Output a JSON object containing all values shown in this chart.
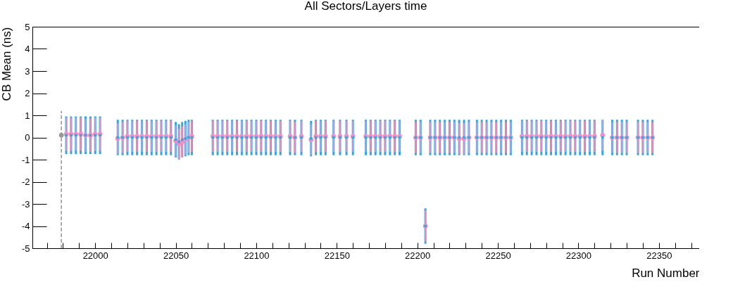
{
  "chart_data": {
    "type": "scatter",
    "title": "All Sectors/Layers time",
    "xlabel": "Run Number",
    "ylabel": "CB Mean (ns)",
    "x": [
      21982,
      21985,
      21988,
      21991,
      21994,
      21997,
      22000,
      22003,
      22014,
      22017,
      22020,
      22023,
      22026,
      22029,
      22032,
      22035,
      22038,
      22041,
      22044,
      22047,
      22050,
      22052,
      22054,
      22056,
      22058,
      22060,
      22073,
      22076,
      22079,
      22082,
      22085,
      22088,
      22091,
      22094,
      22097,
      22100,
      22103,
      22106,
      22109,
      22112,
      22115,
      22121,
      22124,
      22128,
      22134,
      22137,
      22140,
      22143,
      22148,
      22152,
      22156,
      22160,
      22168,
      22171,
      22174,
      22177,
      22180,
      22183,
      22186,
      22189,
      22199,
      22202,
      22205,
      22208,
      22211,
      22214,
      22217,
      22220,
      22223,
      22226,
      22229,
      22232,
      22237,
      22240,
      22243,
      22246,
      22249,
      22252,
      22255,
      22258,
      22265,
      22268,
      22271,
      22274,
      22277,
      22280,
      22283,
      22286,
      22289,
      22292,
      22295,
      22298,
      22301,
      22304,
      22307,
      22310,
      22315,
      22321,
      22324,
      22327,
      22330,
      22337,
      22340,
      22343,
      22346
    ],
    "series": [
      {
        "color": "#3ba3dc",
        "marker": "square",
        "values": [
          0.1,
          0.1,
          0.1,
          0.1,
          0.1,
          0.1,
          0.1,
          0.1,
          0,
          0,
          0,
          0,
          0,
          0,
          0,
          0,
          0,
          0,
          0,
          0,
          -0.1,
          -0.2,
          -0.1,
          -0.05,
          0,
          0,
          0,
          0,
          0,
          0,
          0,
          0,
          0,
          0,
          0,
          0,
          0,
          0,
          0,
          0,
          0,
          0,
          0,
          0,
          -0.05,
          0,
          0,
          0,
          0,
          0,
          0,
          0,
          0,
          0,
          0,
          0,
          0,
          0,
          0,
          0,
          0,
          0,
          -4,
          0,
          0,
          0,
          0,
          0,
          0,
          0,
          0,
          0,
          0,
          0,
          0,
          0,
          0,
          0,
          0,
          0,
          0,
          0,
          0,
          0,
          0,
          0,
          0,
          0,
          0,
          0,
          0,
          0,
          0,
          0,
          0,
          0,
          0,
          0,
          0,
          0,
          0,
          0,
          0,
          0,
          0
        ],
        "errors": [
          0.85,
          0.85,
          0.85,
          0.85,
          0.85,
          0.85,
          0.85,
          0.85,
          0.8,
          0.8,
          0.8,
          0.8,
          0.8,
          0.8,
          0.8,
          0.8,
          0.8,
          0.8,
          0.8,
          0.8,
          0.8,
          0.8,
          0.8,
          0.8,
          0.8,
          0.8,
          0.8,
          0.8,
          0.8,
          0.8,
          0.8,
          0.8,
          0.8,
          0.8,
          0.8,
          0.8,
          0.8,
          0.8,
          0.8,
          0.8,
          0.8,
          0.8,
          0.8,
          0.8,
          0.8,
          0.8,
          0.8,
          0.8,
          0.8,
          0.8,
          0.8,
          0.8,
          0.8,
          0.8,
          0.8,
          0.8,
          0.8,
          0.8,
          0.8,
          0.8,
          0.8,
          0.8,
          0.8,
          0.8,
          0.8,
          0.8,
          0.8,
          0.8,
          0.8,
          0.8,
          0.8,
          0.8,
          0.8,
          0.8,
          0.8,
          0.8,
          0.8,
          0.8,
          0.8,
          0.8,
          0.8,
          0.8,
          0.8,
          0.8,
          0.8,
          0.8,
          0.8,
          0.8,
          0.8,
          0.8,
          0.8,
          0.8,
          0.8,
          0.8,
          0.8,
          0.8,
          0.8,
          0.8,
          0.8,
          0.8,
          0.8,
          0.8,
          0.8,
          0.8,
          0.8
        ]
      },
      {
        "color": "#f48fc6",
        "marker": "circle",
        "values": [
          0.15,
          0.15,
          0.15,
          0.15,
          0.1,
          0.1,
          0.15,
          0.15,
          -0.05,
          0,
          0.05,
          0.05,
          0.05,
          0.05,
          0.05,
          0.05,
          0.05,
          0.05,
          0.05,
          0.05,
          -0.15,
          -0.3,
          -0.2,
          -0.1,
          0,
          0.05,
          0.05,
          0.05,
          0.05,
          0.05,
          0.05,
          0.05,
          0.05,
          0.05,
          0.05,
          0.05,
          0.05,
          0.05,
          0.05,
          0.05,
          0.05,
          0.05,
          0,
          0.05,
          -0.1,
          0.05,
          0.05,
          0.05,
          0.05,
          0.05,
          0.05,
          0.05,
          0.05,
          0.05,
          0.05,
          0.05,
          0.05,
          0.05,
          0.05,
          0.05,
          0,
          0,
          -4,
          0,
          0,
          0,
          0,
          0,
          0,
          -0.05,
          -0.05,
          0,
          0,
          0,
          0,
          0,
          0,
          0,
          0,
          0,
          0.05,
          0.05,
          0.05,
          0.05,
          0.05,
          0.05,
          0.05,
          0.05,
          0.05,
          0.05,
          0.05,
          0.05,
          0.05,
          0.05,
          0.05,
          0.05,
          0.1,
          0,
          0,
          0,
          0,
          0,
          0,
          0,
          0
        ],
        "errors": [
          0.75,
          0.75,
          0.75,
          0.75,
          0.75,
          0.75,
          0.75,
          0.75,
          0.7,
          0.7,
          0.7,
          0.7,
          0.7,
          0.7,
          0.7,
          0.7,
          0.7,
          0.7,
          0.7,
          0.7,
          0.7,
          0.7,
          0.7,
          0.7,
          0.7,
          0.7,
          0.7,
          0.7,
          0.7,
          0.7,
          0.7,
          0.7,
          0.7,
          0.7,
          0.7,
          0.7,
          0.7,
          0.7,
          0.7,
          0.7,
          0.7,
          0.7,
          0.7,
          0.7,
          0.7,
          0.7,
          0.7,
          0.7,
          0.7,
          0.7,
          0.7,
          0.7,
          0.7,
          0.7,
          0.7,
          0.7,
          0.7,
          0.7,
          0.7,
          0.7,
          0.7,
          0.7,
          0.7,
          0.7,
          0.7,
          0.7,
          0.7,
          0.7,
          0.7,
          0.7,
          0.7,
          0.7,
          0.7,
          0.7,
          0.7,
          0.7,
          0.7,
          0.7,
          0.7,
          0.7,
          0.7,
          0.7,
          0.7,
          0.7,
          0.7,
          0.7,
          0.7,
          0.7,
          0.7,
          0.7,
          0.7,
          0.7,
          0.7,
          0.7,
          0.7,
          0.7,
          0.7,
          0.7,
          0.7,
          0.7,
          0.7,
          0.7,
          0.7,
          0.7,
          0.7
        ]
      },
      {
        "color": "#999999",
        "marker": "circle",
        "line_style": "dashed",
        "x": [
          21979
        ],
        "values": [
          0.1
        ],
        "errors": [
          [
            -5,
            1.2
          ]
        ]
      }
    ],
    "xlim": [
      21961,
      22375
    ],
    "xticks": [
      {
        "value": 21970,
        "label": null
      },
      {
        "value": 21980,
        "label": null
      },
      {
        "value": 21990,
        "label": null
      },
      22000,
      {
        "value": 22010,
        "label": null
      },
      {
        "value": 22020,
        "label": null
      },
      {
        "value": 22030,
        "label": null
      },
      {
        "value": 22040,
        "label": null
      },
      22050,
      {
        "value": 22060,
        "label": null
      },
      {
        "value": 22070,
        "label": null
      },
      {
        "value": 22080,
        "label": null
      },
      {
        "value": 22090,
        "label": null
      },
      22100,
      {
        "value": 22110,
        "label": null
      },
      {
        "value": 22120,
        "label": null
      },
      {
        "value": 22130,
        "label": null
      },
      {
        "value": 22140,
        "label": null
      },
      22150,
      {
        "value": 22160,
        "label": null
      },
      {
        "value": 22170,
        "label": null
      },
      {
        "value": 22180,
        "label": null
      },
      {
        "value": 22190,
        "label": null
      },
      22200,
      {
        "value": 22210,
        "label": null
      },
      {
        "value": 22220,
        "label": null
      },
      {
        "value": 22230,
        "label": null
      },
      {
        "value": 22240,
        "label": null
      },
      22250,
      {
        "value": 22260,
        "label": null
      },
      {
        "value": 22270,
        "label": null
      },
      {
        "value": 22280,
        "label": null
      },
      {
        "value": 22290,
        "label": null
      },
      22300,
      {
        "value": 22310,
        "label": null
      },
      {
        "value": 22320,
        "label": null
      },
      {
        "value": 22330,
        "label": null
      },
      {
        "value": 22340,
        "label": null
      },
      22350,
      {
        "value": 22360,
        "label": null
      },
      {
        "value": 22370,
        "label": null
      }
    ],
    "ylim": [
      -5,
      5
    ],
    "yticks": [
      -5,
      -4,
      -3,
      -2,
      -1,
      0,
      1,
      2,
      3,
      4,
      5
    ],
    "grid": false
  }
}
